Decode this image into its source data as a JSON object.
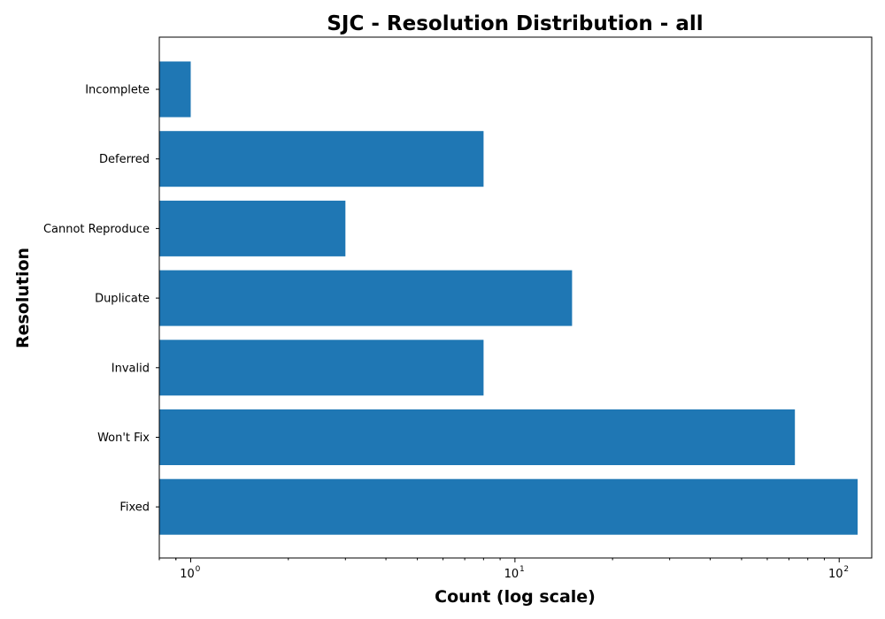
{
  "chart_data": {
    "type": "bar",
    "orientation": "horizontal",
    "title": "SJC - Resolution Distribution - all",
    "xlabel": "Count (log scale)",
    "ylabel": "Resolution",
    "x_scale": "log",
    "x_ticks": [
      {
        "value": 1,
        "base": "10",
        "exp": "0"
      },
      {
        "value": 10,
        "base": "10",
        "exp": "1"
      },
      {
        "value": 100,
        "base": "10",
        "exp": "2"
      }
    ],
    "xlim": [
      0.8,
      126
    ],
    "categories": [
      "Incomplete",
      "Deferred",
      "Cannot Reproduce",
      "Duplicate",
      "Invalid",
      "Won't Fix",
      "Fixed"
    ],
    "values": [
      1,
      8,
      3,
      15,
      8,
      73,
      114
    ],
    "bar_color": "#1f77b4",
    "grid": false,
    "legend": false
  }
}
